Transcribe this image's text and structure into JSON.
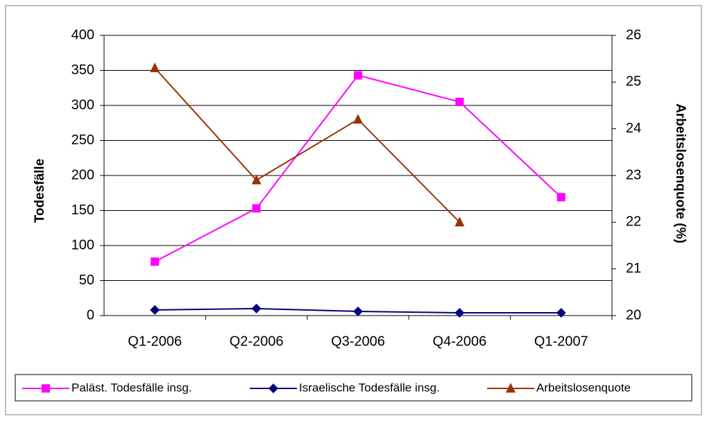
{
  "chart_data": {
    "type": "line",
    "categories": [
      "Q1-2006",
      "Q2-2006",
      "Q3-2006",
      "Q4-2006",
      "Q1-2007"
    ],
    "series": [
      {
        "name": "Paläst. Todesfälle insg.",
        "color": "#ff00ff",
        "marker": "square",
        "values": [
          77,
          153,
          343,
          305,
          169
        ]
      },
      {
        "name": "Israelische Todesfälle insg.",
        "color": "#000080",
        "marker": "diamond",
        "values": [
          8,
          10,
          6,
          4,
          4
        ]
      },
      {
        "name": "Arbeitslosenquote",
        "color": "#993300",
        "marker": "triangle",
        "axis": "y2",
        "values": [
          25.3,
          22.9,
          24.2,
          22.0,
          null
        ]
      }
    ],
    "ylabel": "Todesfälle",
    "y2label": "Arbeitslosenquote (%)",
    "ylim": [
      0,
      400
    ],
    "yticks": [
      0,
      50,
      100,
      150,
      200,
      250,
      300,
      350,
      400
    ],
    "y2lim": [
      20,
      26
    ],
    "y2ticks": [
      20,
      21,
      22,
      23,
      24,
      25,
      26
    ],
    "grid": true,
    "legend": "bottom"
  }
}
